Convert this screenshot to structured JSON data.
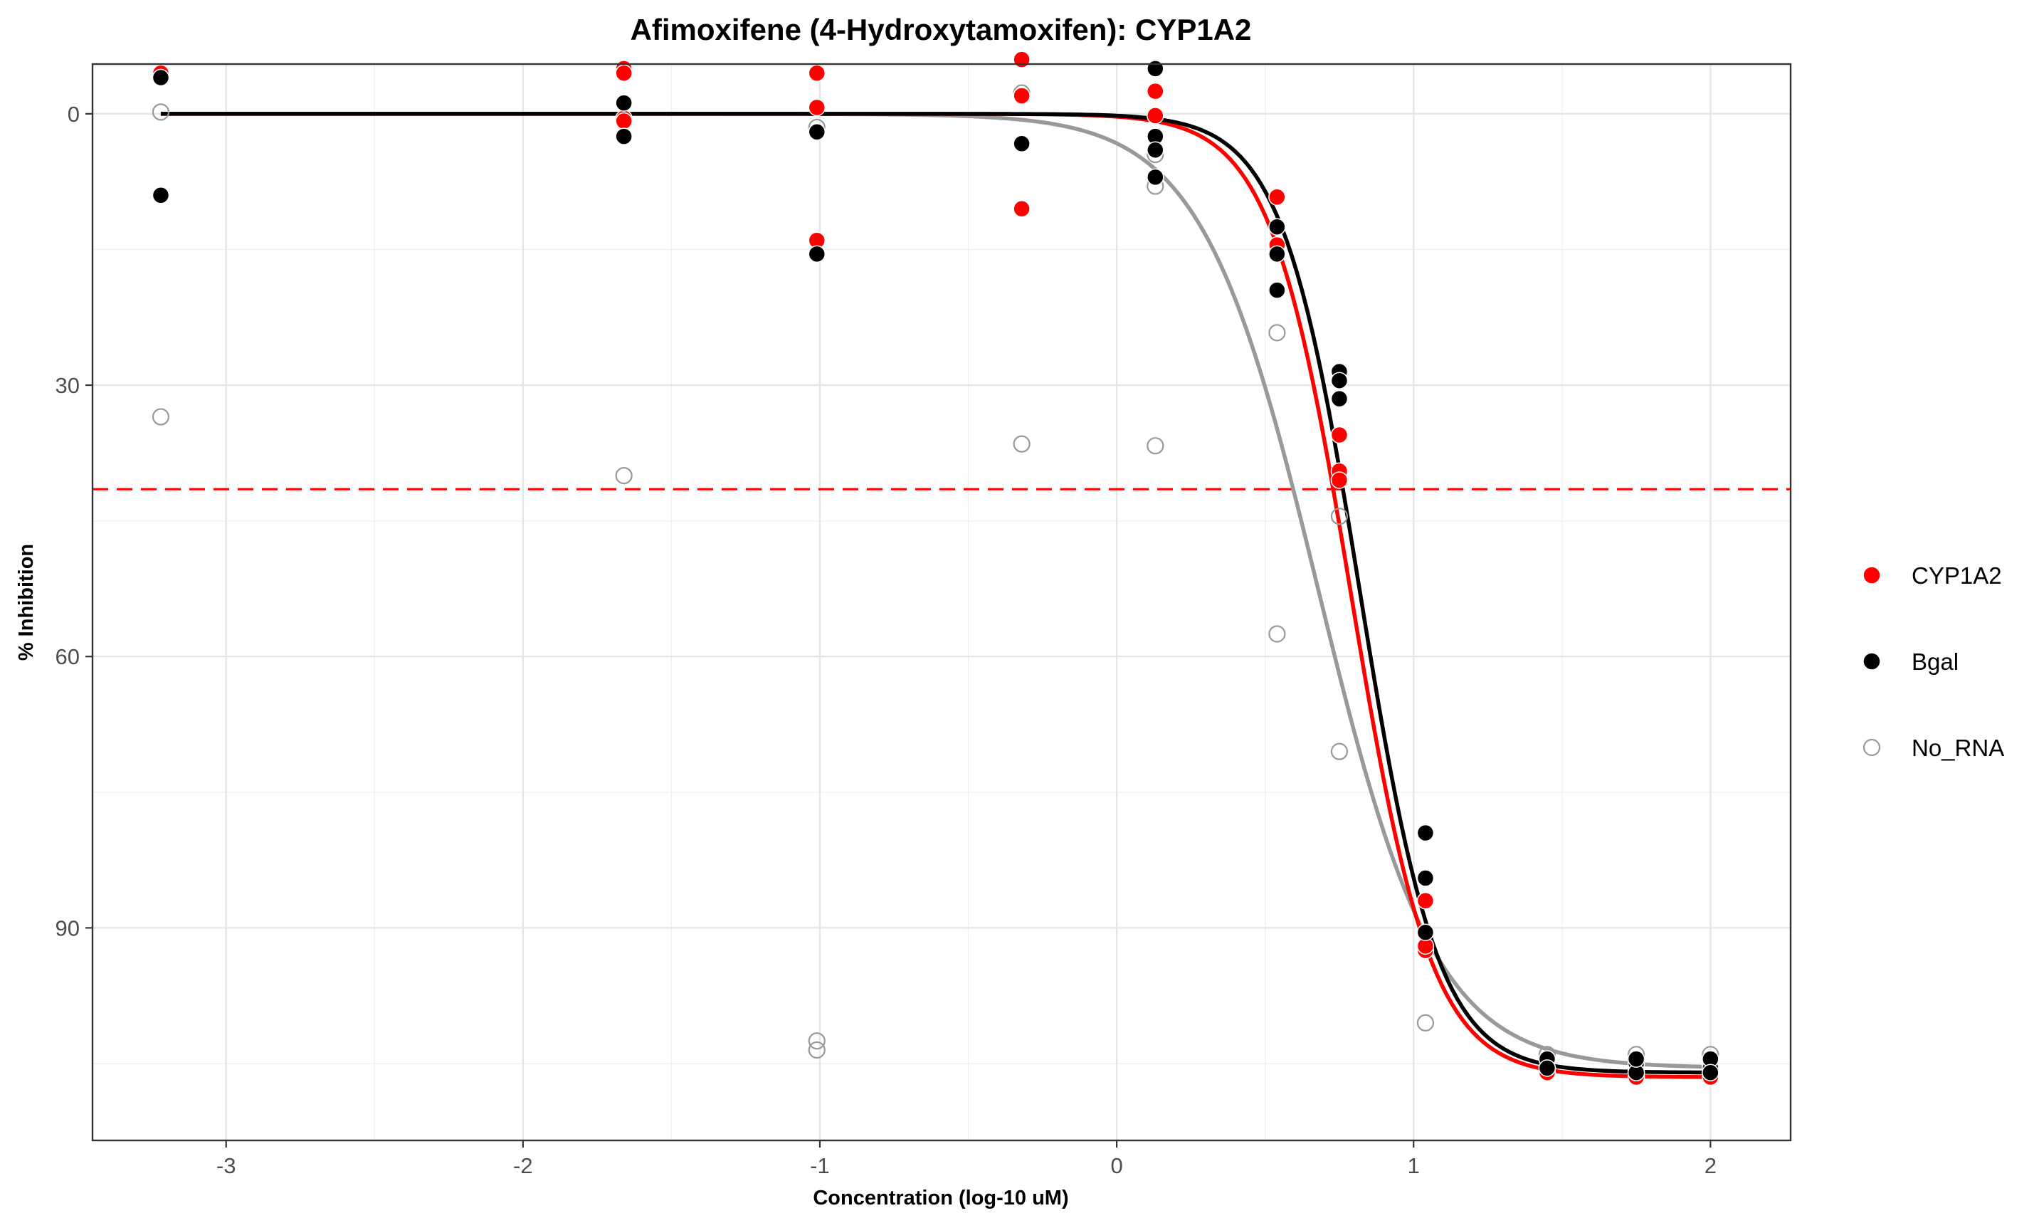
{
  "chart_data": {
    "type": "scatter",
    "title": "Afimoxifene (4-Hydroxytamoxifen): CYP1A2",
    "xlabel": "Concentration (log-10 uM)",
    "ylabel": "% Inhibition",
    "xlim": [
      -3.45,
      2.27
    ],
    "ylim": [
      -5.5,
      113.5
    ],
    "y_reversed": true,
    "x_ticks": [
      -3,
      -2,
      -1,
      0,
      1,
      2
    ],
    "x_tick_labels": [
      "-3",
      "-2",
      "-1",
      "0",
      "1",
      "2"
    ],
    "y_ticks": [
      0,
      30,
      60,
      90
    ],
    "y_tick_labels": [
      "0",
      "30",
      "60",
      "90"
    ],
    "grid": true,
    "legend_position": "right",
    "reference_line": {
      "y": 41.5,
      "style": "dashed",
      "color": "#ff0000"
    },
    "series": [
      {
        "name": "CYP1A2",
        "color": "#ff0000",
        "marker": "filled-circle",
        "points": [
          [
            -3.22,
            -4.5
          ],
          [
            -3.22,
            -4.0
          ],
          [
            -1.66,
            -5.0
          ],
          [
            -1.66,
            -4.5
          ],
          [
            -1.66,
            0.5
          ],
          [
            -1.66,
            0.8
          ],
          [
            -1.01,
            -4.5
          ],
          [
            -1.01,
            -0.7
          ],
          [
            -1.01,
            14.0
          ],
          [
            -0.32,
            -6.0
          ],
          [
            -0.32,
            -2.0
          ],
          [
            -0.32,
            10.5
          ],
          [
            0.13,
            -2.5
          ],
          [
            0.13,
            0.2
          ],
          [
            0.13,
            4.0
          ],
          [
            0.54,
            9.2
          ],
          [
            0.54,
            14.5
          ],
          [
            0.54,
            19.5
          ],
          [
            0.75,
            35.5
          ],
          [
            0.75,
            39.5
          ],
          [
            0.75,
            40.5
          ],
          [
            1.04,
            87.0
          ],
          [
            1.04,
            92.5
          ],
          [
            1.04,
            92.0
          ],
          [
            1.45,
            106.0
          ],
          [
            1.45,
            105.5
          ],
          [
            1.45,
            104.5
          ],
          [
            1.75,
            106.5
          ],
          [
            1.75,
            106.0
          ],
          [
            1.75,
            105.5
          ],
          [
            2.0,
            106.5
          ],
          [
            2.0,
            106.0
          ],
          [
            2.0,
            105.0
          ]
        ],
        "fit": {
          "bottom": 0,
          "top": 106.5,
          "log_ic50": 0.79,
          "hill": 3.2
        }
      },
      {
        "name": "Bgal",
        "color": "#000000",
        "marker": "filled-circle",
        "points": [
          [
            -3.22,
            -4.0
          ],
          [
            -3.22,
            9.0
          ],
          [
            -1.66,
            -1.2
          ],
          [
            -1.66,
            2.5
          ],
          [
            -1.01,
            2.0
          ],
          [
            -1.01,
            15.5
          ],
          [
            -0.32,
            3.3
          ],
          [
            0.13,
            -5.0
          ],
          [
            0.13,
            2.5
          ],
          [
            0.13,
            4.0
          ],
          [
            0.13,
            7.0
          ],
          [
            0.54,
            12.5
          ],
          [
            0.54,
            15.5
          ],
          [
            0.54,
            19.5
          ],
          [
            0.75,
            28.5
          ],
          [
            0.75,
            29.5
          ],
          [
            0.75,
            31.5
          ],
          [
            1.04,
            79.5
          ],
          [
            1.04,
            84.5
          ],
          [
            1.04,
            90.5
          ],
          [
            1.45,
            104.5
          ],
          [
            1.45,
            105.5
          ],
          [
            1.75,
            105.0
          ],
          [
            1.75,
            106.0
          ],
          [
            1.75,
            104.5
          ],
          [
            2.0,
            105.5
          ],
          [
            2.0,
            104.5
          ],
          [
            2.0,
            106.0
          ]
        ],
        "fit": {
          "bottom": 0,
          "top": 106.0,
          "log_ic50": 0.82,
          "hill": 3.3
        }
      },
      {
        "name": "No_RNA",
        "color": "#999999",
        "marker": "open-circle",
        "points": [
          [
            -3.22,
            -0.2
          ],
          [
            -3.22,
            33.5
          ],
          [
            -1.66,
            40.0
          ],
          [
            -1.01,
            1.5
          ],
          [
            -1.01,
            102.5
          ],
          [
            -1.01,
            103.5
          ],
          [
            -0.32,
            -2.0
          ],
          [
            -0.32,
            -2.3
          ],
          [
            -0.32,
            36.5
          ],
          [
            0.13,
            4.5
          ],
          [
            0.13,
            8.0
          ],
          [
            0.13,
            36.7
          ],
          [
            0.54,
            24.2
          ],
          [
            0.54,
            57.5
          ],
          [
            0.75,
            44.5
          ],
          [
            0.75,
            70.5
          ],
          [
            1.04,
            100.5
          ],
          [
            1.45,
            104.0
          ],
          [
            1.75,
            104.0
          ],
          [
            2.0,
            104.0
          ]
        ],
        "fit": {
          "bottom": 0,
          "top": 105.5,
          "log_ic50": 0.68,
          "hill": 2.2
        }
      }
    ]
  }
}
